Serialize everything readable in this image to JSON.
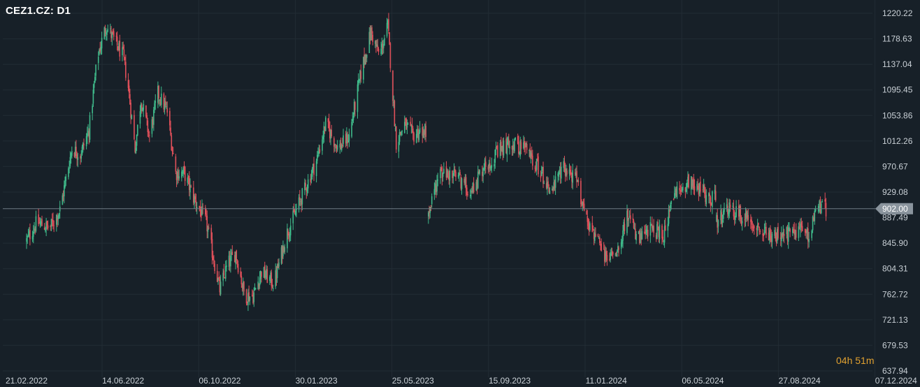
{
  "chart_title": "CEZ1.CZ: D1",
  "timer": {
    "hours": "04",
    "hours_unit": "h",
    "minutes": "51",
    "minutes_unit": "m"
  },
  "current_price_label": "902.00",
  "colors": {
    "background": "#172028",
    "grid": "#222c34",
    "up": "#3fb98a",
    "down": "#e0505a",
    "price_line": "#6f7a84",
    "price_tag": "#8a949d"
  },
  "chart_data": {
    "type": "candlestick",
    "title": "CEZ1.CZ: D1",
    "timeframe": "D1",
    "ylim": [
      637.94,
      1220.22
    ],
    "y_ticks": [
      "1220.22",
      "1178.63",
      "1137.04",
      "1095.45",
      "1053.86",
      "1012.26",
      "970.67",
      "929.08",
      "887.49",
      "845.90",
      "804.31",
      "762.72",
      "721.13",
      "679.53",
      "637.94"
    ],
    "x_ticks": [
      "21.02.2022",
      "14.06.2022",
      "06.10.2022",
      "30.01.2023",
      "25.05.2023",
      "15.09.2023",
      "11.01.2024",
      "06.05.2024",
      "27.08.2024",
      "07.12.2024"
    ],
    "current_price": 902.0,
    "close_path": [
      [
        "21.02.2022",
        850
      ],
      [
        "2022-03-05",
        880
      ],
      [
        "2022-03-20",
        870
      ],
      [
        "2022-04-01",
        900
      ],
      [
        "2022-04-15",
        1000
      ],
      [
        "2022-04-25",
        990
      ],
      [
        "2022-05-05",
        1030
      ],
      [
        "2022-05-15",
        1150
      ],
      [
        "2022-05-25",
        1200
      ],
      [
        "14.06.2022",
        1150
      ],
      [
        "2022-06-20",
        1100
      ],
      [
        "2022-06-28",
        1000
      ],
      [
        "2022-07-05",
        1080
      ],
      [
        "2022-07-15",
        1020
      ],
      [
        "2022-07-25",
        1090
      ],
      [
        "2022-08-05",
        1060
      ],
      [
        "2022-08-15",
        960
      ],
      [
        "2022-08-25",
        960
      ],
      [
        "2022-09-05",
        920
      ],
      [
        "2022-09-20",
        880
      ],
      [
        "06.10.2022",
        770
      ],
      [
        "2022-10-15",
        810
      ],
      [
        "2022-10-25",
        830
      ],
      [
        "2022-11-05",
        760
      ],
      [
        "2022-11-15",
        760
      ],
      [
        "2022-11-25",
        800
      ],
      [
        "2022-12-10",
        780
      ],
      [
        "2022-12-25",
        860
      ],
      [
        "30.01.2023",
        980
      ],
      [
        "2023-02-10",
        1040
      ],
      [
        "2023-02-25",
        1000
      ],
      [
        "2023-03-10",
        1020
      ],
      [
        "2023-03-25",
        1130
      ],
      [
        "2023-04-05",
        1190
      ],
      [
        "2023-04-15",
        1150
      ],
      [
        "2023-04-25",
        1200
      ],
      [
        "2023-05-05",
        1010
      ],
      [
        "2023-05-15",
        1040
      ],
      [
        "25.05.2023",
        1020
      ],
      [
        "2023-06-02",
        1030
      ],
      [
        "2023-06-10",
        890
      ],
      [
        "2023-06-25",
        960
      ],
      [
        "2023-07-15",
        955
      ],
      [
        "2023-08-01",
        930
      ],
      [
        "2023-08-15",
        970
      ],
      [
        "15.09.2023",
        1010
      ],
      [
        "2023-10-05",
        1000
      ],
      [
        "2023-10-20",
        970
      ],
      [
        "2023-11-05",
        930
      ],
      [
        "2023-11-20",
        970
      ],
      [
        "2023-12-05",
        950
      ],
      [
        "2023-12-20",
        880
      ],
      [
        "11.01.2024",
        820
      ],
      [
        "2024-01-25",
        840
      ],
      [
        "2024-02-05",
        890
      ],
      [
        "2024-02-20",
        850
      ],
      [
        "2024-03-05",
        870
      ],
      [
        "2024-03-20",
        860
      ],
      [
        "2024-04-01",
        920
      ],
      [
        "2024-04-20",
        950
      ],
      [
        "06.05.2024",
        930
      ],
      [
        "2024-05-12",
        920
      ],
      [
        "2024-05-22",
        880
      ],
      [
        "2024-06-05",
        900
      ],
      [
        "2024-06-20",
        890
      ],
      [
        "2024-07-05",
        880
      ],
      [
        "2024-07-20",
        860
      ],
      [
        "2024-08-05",
        855
      ],
      [
        "27.08.2024",
        870
      ],
      [
        "2024-09-05",
        860
      ],
      [
        "2024-09-15",
        905
      ],
      [
        "2024-09-25",
        902
      ]
    ],
    "gaps_after": [
      "2023-06-02",
      "2024-05-12"
    ]
  }
}
